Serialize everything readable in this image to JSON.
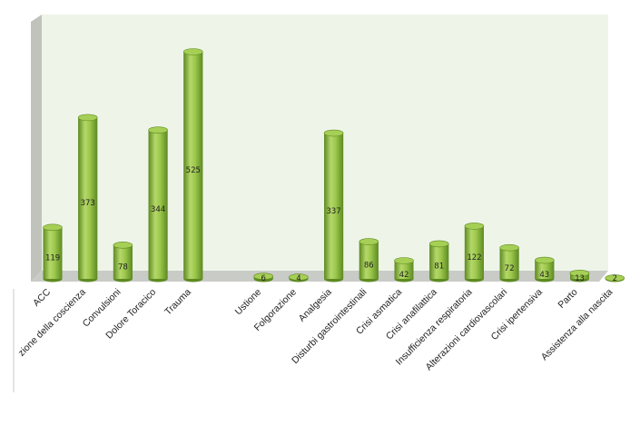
{
  "chart_data": {
    "type": "bar",
    "categories": [
      "ACC",
      "zione della coscienza",
      "Convulsioni",
      "Dolore Toracico",
      "Trauma",
      "",
      "Ustione",
      "Folgorazione",
      "Analgesia",
      "Disturbi gastrointestinali",
      "Crisi asmatica",
      "Crisi anafilattica",
      "Insufficienza respiratoria",
      "Alterazioni cardiovascolari",
      "Crisi ipertensiva",
      "Parto",
      "Assistenza alla nascita"
    ],
    "values": [
      119,
      373,
      78,
      344,
      525,
      null,
      6,
      4,
      337,
      86,
      42,
      81,
      122,
      72,
      43,
      13,
      2
    ],
    "value_labels": [
      "119",
      "373",
      "78",
      "344",
      "525",
      "",
      "6",
      "4",
      "337",
      "86",
      "42",
      "81",
      "122",
      "72",
      "43",
      "13",
      "2"
    ],
    "title": "",
    "xlabel": "",
    "ylabel": "",
    "ylim": [
      0,
      525
    ],
    "grid": false,
    "legend": "none",
    "colors": {
      "bar_light": "#b5d86a",
      "bar_mid": "#8dbb3f",
      "bar_dark": "#5e8a22",
      "bar_top": "#a6cf55",
      "plot_back": "#eef5e8",
      "plot_side": "#bfc3bc",
      "plot_floor": "#c9cbc7"
    }
  }
}
